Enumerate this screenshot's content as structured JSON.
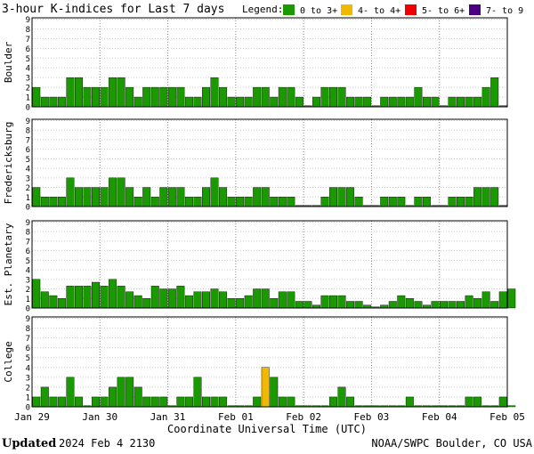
{
  "title": "3-hour K-indices for Last 7 days",
  "legend": {
    "label": "Legend:",
    "items": [
      {
        "name": "0 to 3+",
        "color": "#1a9a00"
      },
      {
        "name": "4- to 4+",
        "color": "#f0b800"
      },
      {
        "name": "5- to 6+",
        "color": "#ee0000"
      },
      {
        "name": "7- to 9",
        "color": "#4b0082"
      }
    ]
  },
  "footer": {
    "updated_label": "Updated",
    "updated_value": "2024 Feb  4 2130",
    "credit": "NOAA/SWPC Boulder, CO USA"
  },
  "chart_data": {
    "type": "bar",
    "xlabel": "Coordinate Universal Time (UTC)",
    "x_ticks": [
      "Jan 29",
      "Jan 30",
      "Jan 31",
      "Feb 01",
      "Feb 02",
      "Feb 03",
      "Feb 04",
      "Feb 05"
    ],
    "y_ticks": [
      0,
      1,
      2,
      3,
      4,
      5,
      6,
      7,
      8,
      9
    ],
    "ylim": [
      0,
      9
    ],
    "bins_per_day": 8,
    "grid": "dotted",
    "panels": [
      {
        "ylabel": "Boulder",
        "values": [
          2,
          1,
          1,
          1,
          3,
          3,
          2,
          2,
          2,
          3,
          3,
          2,
          1,
          2,
          2,
          2,
          2,
          2,
          1,
          1,
          2,
          3,
          2,
          1,
          1,
          1,
          2,
          2,
          1,
          2,
          2,
          1,
          0,
          1,
          2,
          2,
          2,
          1,
          1,
          1,
          0,
          1,
          1,
          1,
          1,
          2,
          1,
          1,
          0,
          1,
          1,
          1,
          1,
          2,
          3,
          0
        ]
      },
      {
        "ylabel": "Fredericksburg",
        "values": [
          2,
          1,
          1,
          1,
          3,
          2,
          2,
          2,
          2,
          3,
          3,
          2,
          1,
          2,
          1,
          2,
          2,
          2,
          1,
          1,
          2,
          3,
          2,
          1,
          1,
          1,
          2,
          2,
          1,
          1,
          1,
          0,
          0,
          0,
          1,
          2,
          2,
          2,
          1,
          0,
          0,
          1,
          1,
          1,
          0,
          1,
          1,
          0,
          0,
          1,
          1,
          1,
          2,
          2,
          2,
          0
        ]
      },
      {
        "ylabel": "Est. Planetary",
        "values": [
          3,
          1.7,
          1.3,
          1,
          2.3,
          2.3,
          2.3,
          2.7,
          2.3,
          3,
          2.3,
          1.7,
          1.3,
          1,
          2.3,
          2,
          2,
          2.3,
          1.3,
          1.7,
          1.7,
          2,
          1.7,
          1,
          1,
          1.3,
          2,
          2,
          1,
          1.7,
          1.7,
          0.7,
          0.7,
          0.3,
          1.3,
          1.3,
          1.3,
          0.7,
          0.7,
          0.3,
          0,
          0.3,
          0.7,
          1.3,
          1,
          0.7,
          0.3,
          0.7,
          0.7,
          0.7,
          0.7,
          1.3,
          1,
          1.7,
          0.7,
          1.7,
          2
        ]
      },
      {
        "ylabel": "College",
        "values": [
          1,
          2,
          1,
          1,
          3,
          1,
          0,
          1,
          1,
          2,
          3,
          3,
          2,
          1,
          1,
          1,
          0,
          1,
          1,
          3,
          1,
          1,
          1,
          0,
          0,
          0,
          1,
          4,
          3,
          1,
          1,
          0,
          0,
          0,
          0,
          1,
          2,
          1,
          0,
          0,
          0,
          0,
          0,
          0,
          1,
          0,
          0,
          0,
          0,
          0,
          0,
          1,
          1,
          0,
          0,
          1,
          0
        ]
      }
    ]
  }
}
